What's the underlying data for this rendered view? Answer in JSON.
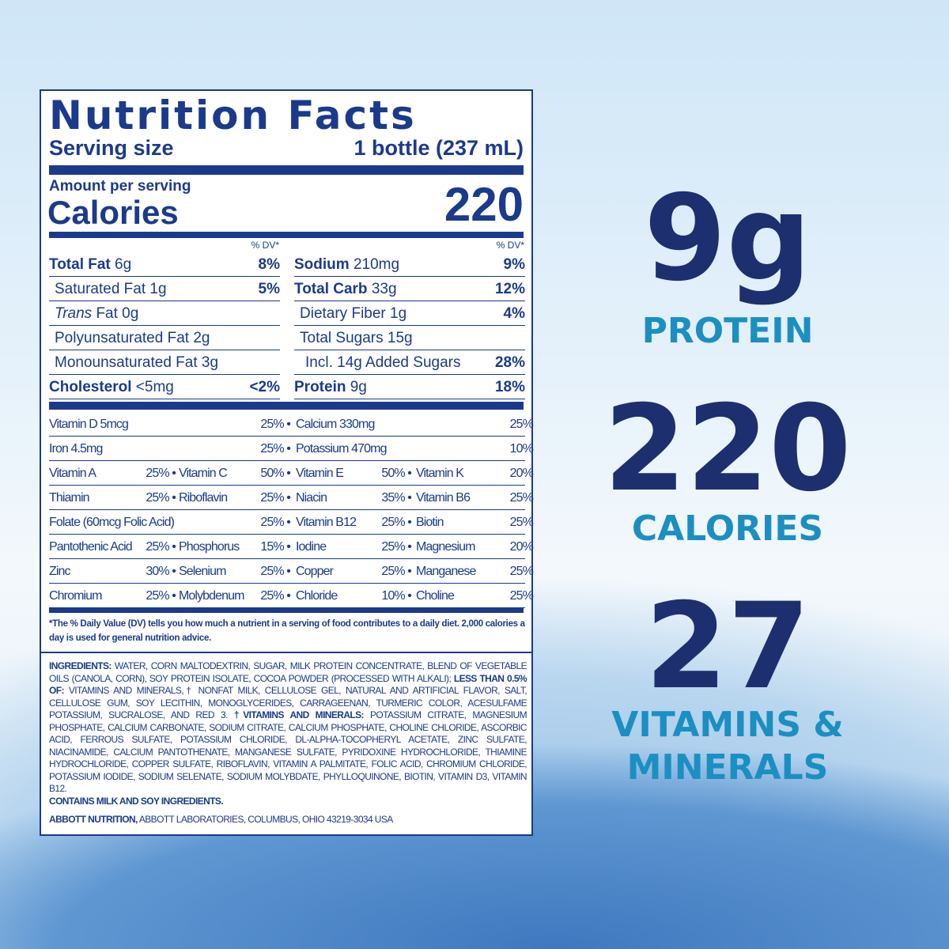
{
  "label": {
    "title": "Nutrition Facts",
    "serving_label": "Serving size",
    "serving_value": "1 bottle (237 mL)",
    "amount_label": "Amount per serving",
    "calories_label": "Calories",
    "calories_value": "220",
    "dv_header": "% DV*",
    "left_rows": [
      {
        "name": "Total Fat",
        "amt": " 6g",
        "dv": "8%",
        "bold": true
      },
      {
        "name": "Saturated Fat 1g",
        "amt": "",
        "dv": "5%",
        "indent": 1
      },
      {
        "name": "Trans",
        "amt": " Fat 0g",
        "dv": "",
        "indent": 1,
        "italic": true
      },
      {
        "name": "Polyunsaturated Fat 2g",
        "amt": "",
        "dv": "",
        "indent": 1
      },
      {
        "name": "Monounsaturated Fat 3g",
        "amt": "",
        "dv": "",
        "indent": 1
      },
      {
        "name": "Cholesterol",
        "amt": " <5mg",
        "dv": "<2%",
        "bold": true
      }
    ],
    "right_rows": [
      {
        "name": "Sodium",
        "amt": " 210mg",
        "dv": "9%",
        "bold": true
      },
      {
        "name": "Total Carb",
        "amt": " 33g",
        "dv": "12%",
        "bold": true
      },
      {
        "name": "Dietary Fiber 1g",
        "amt": "",
        "dv": "4%",
        "indent": 1
      },
      {
        "name": "Total Sugars 15g",
        "amt": "",
        "dv": "",
        "indent": 1
      },
      {
        "name": "Incl. 14g Added Sugars",
        "amt": "",
        "dv": "28%",
        "indent": 2
      },
      {
        "name": "Protein",
        "amt": " 9g",
        "dv": "18%",
        "bold": true
      }
    ],
    "vitamin_rows": [
      [
        "Vitamin D 5mcg",
        "25% •",
        "Calcium 330mg",
        "25%"
      ],
      [
        "Iron 4.5mg",
        "25% •",
        "Potassium 470mg",
        "10%"
      ],
      [
        "Vitamin A",
        "25% •",
        "Vitamin C",
        "50% •",
        "Vitamin E",
        "50% •",
        "Vitamin K",
        "20%"
      ],
      [
        "Thiamin",
        "25% •",
        "Riboflavin",
        "25% •",
        "Niacin",
        "35% •",
        "Vitamin B6",
        "25%"
      ],
      [
        "Folate (60mcg Folic Acid)",
        "",
        "",
        "25% •",
        "Vitamin B12",
        "25% •",
        "Biotin",
        "25%"
      ],
      [
        "Pantothenic Acid",
        "25% •",
        "Phosphorus",
        "15% •",
        "Iodine",
        "25% •",
        "Magnesium",
        "20%"
      ],
      [
        "Zinc",
        "30% •",
        "Selenium",
        "25% •",
        "Copper",
        "25% •",
        "Manganese",
        "25%"
      ],
      [
        "Chromium",
        "25% •",
        "Molybdenum",
        "25% •",
        "Chloride",
        "10% •",
        "Choline",
        "25%"
      ]
    ],
    "footnote": "*The % Daily Value (DV) tells you how much a nutrient in a serving of food contributes to a daily diet. 2,000 calories a day is used for general nutrition advice.",
    "ingredients_label": "Ingredients:",
    "ingredients_1": " Water, Corn Maltodextrin, Sugar, Milk Protein Concentrate, Blend of Vegetable Oils (Canola, Corn), Soy Protein Isolate, Cocoa Powder (Processed with Alkali); ",
    "less_than": "Less than 0.5% of:",
    "ingredients_2": " Vitamins and Minerals,† Nonfat Milk, Cellulose Gel, Natural and Artificial Flavor, Salt, Cellulose Gum, Soy Lecithin, Monoglycerides, Carrageenan, Turmeric Color, Acesulfame Potassium, Sucralose, and Red 3. ",
    "vm_label": "†Vitamins and Minerals:",
    "ingredients_3": " Potassium Citrate, Magnesium Phosphate, Calcium Carbonate, Sodium Citrate, Calcium Phosphate, Choline Chloride, Ascorbic Acid, Ferrous Sulfate, Potassium Chloride, dl-Alpha-Tocopheryl Acetate, Zinc Sulfate, Niacinamide, Calcium Pantothenate, Manganese Sulfate, Pyridoxine Hydrochloride, Thiamine Hydrochloride, Copper Sulfate, Riboflavin, Vitamin A Palmitate, Folic Acid, Chromium Chloride, Potassium Iodide, Sodium Selenate, Sodium Molybdate, Phylloquinone, Biotin, Vitamin D3, Vitamin B12.",
    "contains": "Contains milk and soy ingredients.",
    "maker_bold": "Abbott Nutrition,",
    "maker": " Abbott Laboratories, Columbus, Ohio 43219-3034 USA"
  },
  "highlights": [
    {
      "value": "9g",
      "label": "PROTEIN"
    },
    {
      "value": "220",
      "label": "CALORIES"
    },
    {
      "value": "27",
      "label": "VITAMINS & MINERALS"
    }
  ],
  "colors": {
    "label_blue": "#1b3a8c",
    "big_text": "#1d2f6f",
    "accent": "#1b8fc2"
  }
}
